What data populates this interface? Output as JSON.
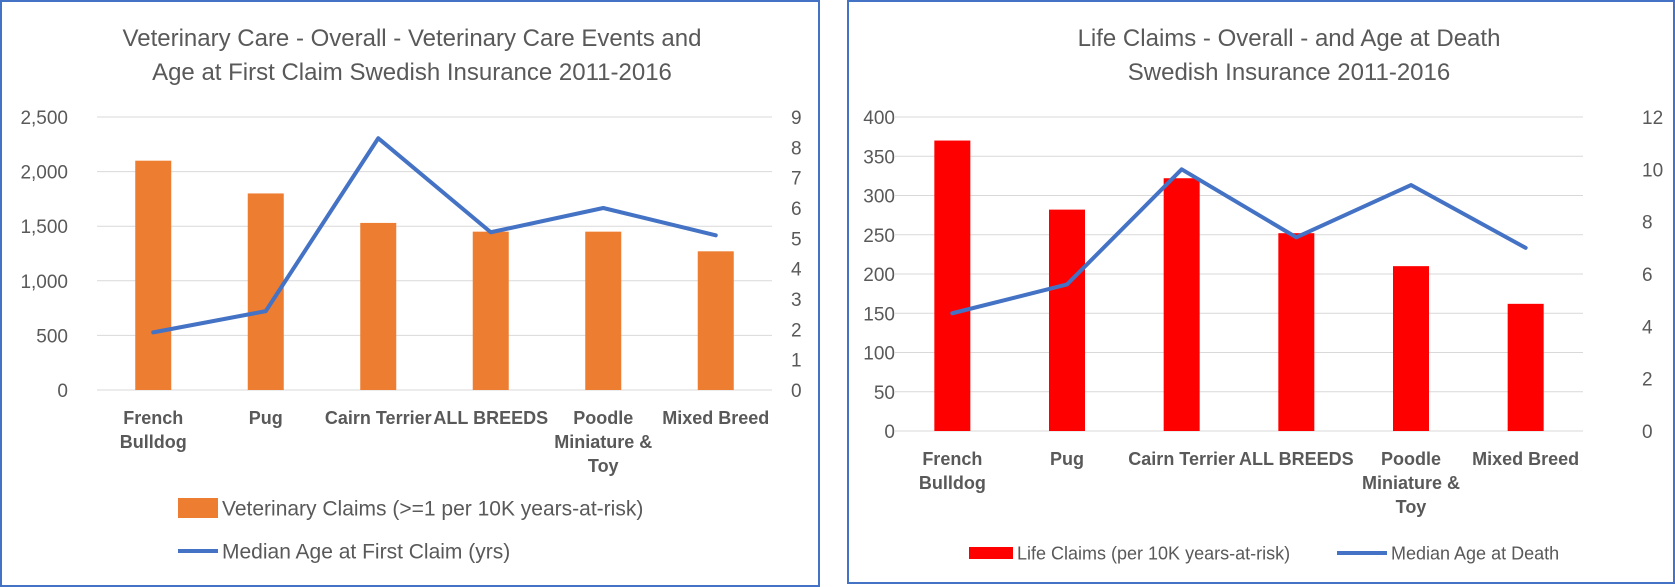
{
  "chart_data": [
    {
      "type": "bar",
      "title_lines": [
        "Veterinary Care - Overall - Veterinary Care Events and",
        "Age at First Claim Swedish Insurance 2011-2016"
      ],
      "categories": [
        [
          "French",
          "Bulldog"
        ],
        [
          "Pug"
        ],
        [
          "Cairn Terrier"
        ],
        [
          "ALL BREEDS"
        ],
        [
          "Poodle",
          "Miniature &",
          "Toy"
        ],
        [
          "Mixed Breed"
        ]
      ],
      "y_left": {
        "min": 0,
        "max": 2500,
        "step": 500,
        "tick_labels": [
          "0",
          "500",
          "1,000",
          "1,500",
          "2,000",
          "2,500"
        ]
      },
      "y_right": {
        "min": 0,
        "max": 9,
        "step": 1,
        "tick_labels": [
          "0",
          "1",
          "2",
          "3",
          "4",
          "5",
          "6",
          "7",
          "8",
          "9"
        ]
      },
      "grid": true,
      "legend_position": "bottom",
      "series": [
        {
          "name": "Veterinary Claims (>=1 per 10K years-at-risk)",
          "kind": "bar",
          "axis": "left",
          "color": "#ED7D31",
          "values": [
            2100,
            1800,
            1530,
            1450,
            1450,
            1270
          ]
        },
        {
          "name": "Median Age at First Claim (yrs)",
          "kind": "line",
          "axis": "right",
          "color": "#4472C4",
          "values": [
            1.9,
            2.6,
            8.3,
            5.2,
            6.0,
            5.1
          ]
        }
      ]
    },
    {
      "type": "bar",
      "title_lines": [
        "Life Claims - Overall - and Age at Death",
        "Swedish Insurance 2011-2016"
      ],
      "categories": [
        [
          "French",
          "Bulldog"
        ],
        [
          "Pug"
        ],
        [
          "Cairn Terrier"
        ],
        [
          "ALL BREEDS"
        ],
        [
          "Poodle",
          "Miniature &",
          "Toy"
        ],
        [
          "Mixed Breed"
        ]
      ],
      "y_left": {
        "min": 0,
        "max": 400,
        "step": 50,
        "tick_labels": [
          "0",
          "50",
          "100",
          "150",
          "200",
          "250",
          "300",
          "350",
          "400"
        ]
      },
      "y_right": {
        "min": 0,
        "max": 12,
        "step": 2,
        "tick_labels": [
          "0",
          "2",
          "4",
          "6",
          "8",
          "10",
          "12"
        ]
      },
      "grid": true,
      "legend_position": "bottom",
      "series": [
        {
          "name": "Life Claims (per 10K years-at-risk)",
          "kind": "bar",
          "axis": "left",
          "color": "#FF0000",
          "values": [
            370,
            282,
            322,
            252,
            210,
            162
          ]
        },
        {
          "name": "Median Age at Death",
          "kind": "line",
          "axis": "right",
          "color": "#4472C4",
          "values": [
            4.5,
            5.6,
            10.0,
            7.4,
            9.4,
            7.0
          ]
        }
      ]
    }
  ]
}
